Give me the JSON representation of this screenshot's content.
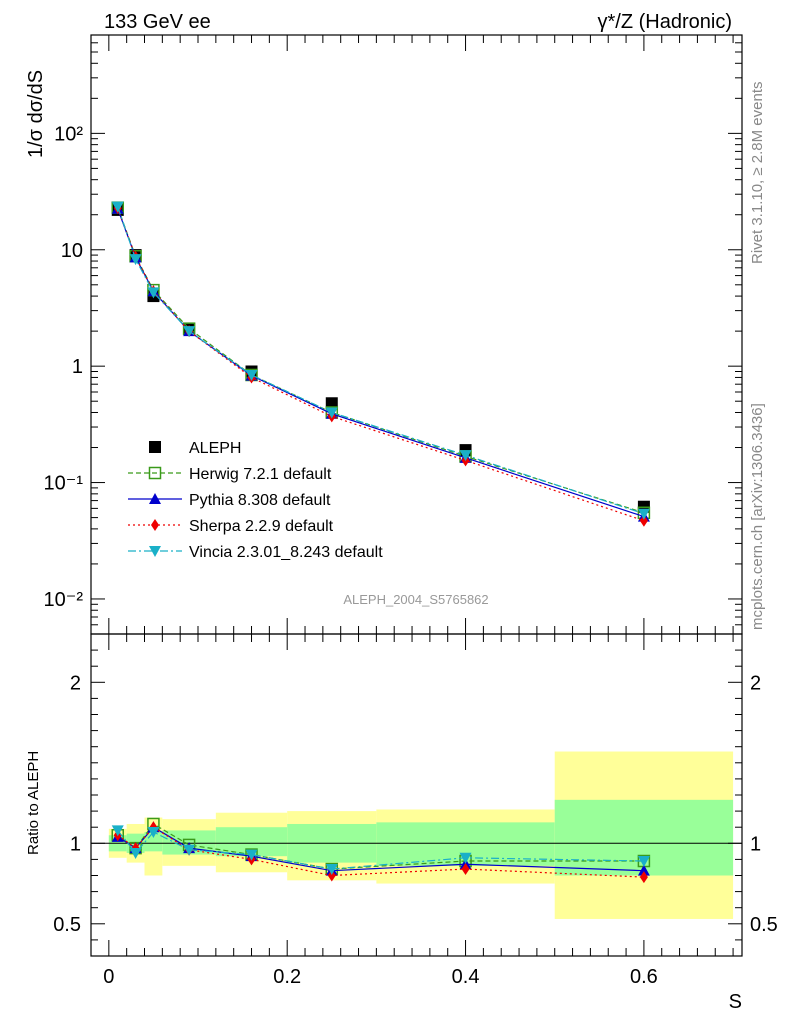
{
  "header": {
    "left": "133 GeV ee",
    "right": "γ*/Z (Hadronic)"
  },
  "side_labels": {
    "rivet": "Rivet 3.1.10, ≥ 2.8M events",
    "mcplots": "mcplots.cern.ch [arXiv:1306.3436]"
  },
  "analysis_id": "ALEPH_2004_S5765862",
  "axis_labels": {
    "main_y": "1/σ  dσ/dS",
    "ratio_y": "Ratio to ALEPH",
    "x": "S"
  },
  "colors": {
    "data": "#000000",
    "herwig": "#3a9a1a",
    "pythia": "#0000cc",
    "sherpa": "#ee0000",
    "vincia": "#1ab0c8",
    "band_inner": "#99ff99",
    "band_outer": "#ffff99"
  },
  "chart_data": [
    {
      "type": "scatter",
      "panel": "main",
      "ylog": true,
      "xlim": [
        -0.02,
        0.71
      ],
      "ylim": [
        0.005,
        700
      ],
      "ytick_labels": [
        "10⁻²",
        "10⁻¹",
        "1",
        "10",
        "10²"
      ],
      "ytick_values": [
        0.01,
        0.1,
        1,
        10,
        100
      ],
      "legend_placement": "lower-left",
      "series": [
        {
          "name": "ALEPH",
          "key": "data",
          "x": [
            0.01,
            0.03,
            0.05,
            0.09,
            0.16,
            0.25,
            0.4,
            0.6
          ],
          "y": [
            22.0,
            9.0,
            4.0,
            2.1,
            0.9,
            0.48,
            0.19,
            0.062
          ]
        },
        {
          "name": "Herwig 7.2.1 default",
          "key": "herwig",
          "x": [
            0.01,
            0.03,
            0.05,
            0.09,
            0.16,
            0.25,
            0.4,
            0.6
          ],
          "y": [
            23.0,
            8.8,
            4.5,
            2.1,
            0.84,
            0.4,
            0.168,
            0.055
          ]
        },
        {
          "name": "Pythia 8.308 default",
          "key": "pythia",
          "x": [
            0.01,
            0.03,
            0.05,
            0.09,
            0.16,
            0.25,
            0.4,
            0.6
          ],
          "y": [
            22.5,
            8.6,
            4.4,
            2.0,
            0.83,
            0.39,
            0.163,
            0.051
          ]
        },
        {
          "name": "Sherpa 2.2.9 default",
          "key": "sherpa",
          "x": [
            0.01,
            0.03,
            0.05,
            0.09,
            0.16,
            0.25,
            0.4,
            0.6
          ],
          "y": [
            22.8,
            8.7,
            4.4,
            2.0,
            0.8,
            0.37,
            0.155,
            0.047
          ]
        },
        {
          "name": "Vincia 2.3.01_8.243 default",
          "key": "vincia",
          "x": [
            0.01,
            0.03,
            0.05,
            0.09,
            0.16,
            0.25,
            0.4,
            0.6
          ],
          "y": [
            23.5,
            8.3,
            4.3,
            2.0,
            0.84,
            0.4,
            0.172,
            0.054
          ]
        }
      ]
    },
    {
      "type": "scatter",
      "panel": "ratio",
      "xlim": [
        -0.02,
        0.71
      ],
      "ylim": [
        0.3,
        2.3
      ],
      "ytick_labels": [
        "0.5",
        "1",
        "2"
      ],
      "ytick_values": [
        0.5,
        1,
        2
      ],
      "xtick_labels": [
        "0",
        "0.2",
        "0.4",
        "0.6"
      ],
      "xtick_values": [
        0,
        0.2,
        0.4,
        0.6
      ],
      "reference_line": 1,
      "bands": {
        "edges": [
          0,
          0.02,
          0.04,
          0.06,
          0.12,
          0.2,
          0.3,
          0.5,
          0.7
        ],
        "inner_lo": [
          0.95,
          0.94,
          0.95,
          0.93,
          0.92,
          0.88,
          0.86,
          0.8
        ],
        "inner_hi": [
          1.05,
          1.06,
          1.07,
          1.08,
          1.1,
          1.12,
          1.13,
          1.27
        ],
        "outer_lo": [
          0.91,
          0.88,
          0.8,
          0.86,
          0.82,
          0.77,
          0.75,
          0.53
        ],
        "outer_hi": [
          1.09,
          1.12,
          1.16,
          1.15,
          1.19,
          1.2,
          1.21,
          1.57
        ]
      },
      "series": [
        {
          "name": "Herwig 7.2.1 default",
          "key": "herwig",
          "x": [
            0.01,
            0.03,
            0.05,
            0.09,
            0.16,
            0.25,
            0.4,
            0.6
          ],
          "y": [
            1.05,
            0.97,
            1.12,
            0.99,
            0.93,
            0.84,
            0.89,
            0.89
          ]
        },
        {
          "name": "Pythia 8.308 default",
          "key": "pythia",
          "x": [
            0.01,
            0.03,
            0.05,
            0.09,
            0.16,
            0.25,
            0.4,
            0.6
          ],
          "y": [
            1.04,
            0.97,
            1.1,
            0.97,
            0.92,
            0.83,
            0.87,
            0.83
          ]
        },
        {
          "name": "Sherpa 2.2.9 default",
          "key": "sherpa",
          "x": [
            0.01,
            0.03,
            0.05,
            0.09,
            0.16,
            0.25,
            0.4,
            0.6
          ],
          "y": [
            1.05,
            0.97,
            1.1,
            0.96,
            0.9,
            0.8,
            0.84,
            0.79
          ]
        },
        {
          "name": "Vincia 2.3.01_8.243 default",
          "key": "vincia",
          "x": [
            0.01,
            0.03,
            0.05,
            0.09,
            0.16,
            0.25,
            0.4,
            0.6
          ],
          "y": [
            1.08,
            0.94,
            1.07,
            0.96,
            0.93,
            0.84,
            0.91,
            0.89
          ]
        }
      ]
    }
  ]
}
